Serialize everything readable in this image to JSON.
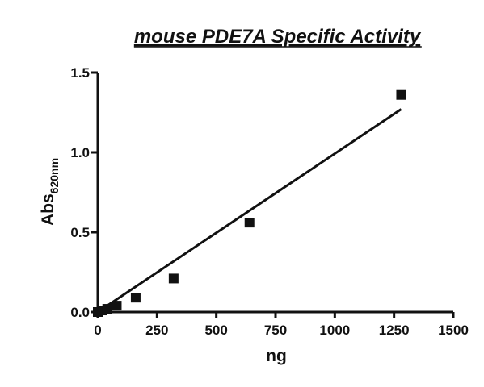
{
  "chart_data": {
    "type": "scatter",
    "title": "mouse PDE7A Specific Activity",
    "xlabel": "ng",
    "ylabel_main": "Abs",
    "ylabel_sub": "620nm",
    "xlim": [
      0,
      1500
    ],
    "ylim": [
      0,
      1.5
    ],
    "x_ticks": [
      0,
      250,
      500,
      750,
      1000,
      1250,
      1500
    ],
    "y_ticks": [
      0.0,
      0.5,
      1.0,
      1.5
    ],
    "x_tick_labels": [
      "0",
      "250",
      "500",
      "750",
      "1000",
      "1250",
      "1500"
    ],
    "y_tick_labels": [
      "0.0",
      "0.5",
      "1.0",
      "1.5"
    ],
    "grid": false,
    "series": [
      {
        "points": [
          {
            "x": 0,
            "y": 0.0
          },
          {
            "x": 20,
            "y": 0.01
          },
          {
            "x": 40,
            "y": 0.02
          },
          {
            "x": 80,
            "y": 0.04
          },
          {
            "x": 160,
            "y": 0.09
          },
          {
            "x": 320,
            "y": 0.21
          },
          {
            "x": 640,
            "y": 0.56
          },
          {
            "x": 1280,
            "y": 1.36
          }
        ],
        "fit_line": {
          "x": [
            0,
            1280
          ],
          "y": [
            0.0,
            1.27
          ]
        }
      }
    ],
    "colors": {
      "marker": "#111111",
      "line": "#111111",
      "axis": "#111111"
    }
  }
}
